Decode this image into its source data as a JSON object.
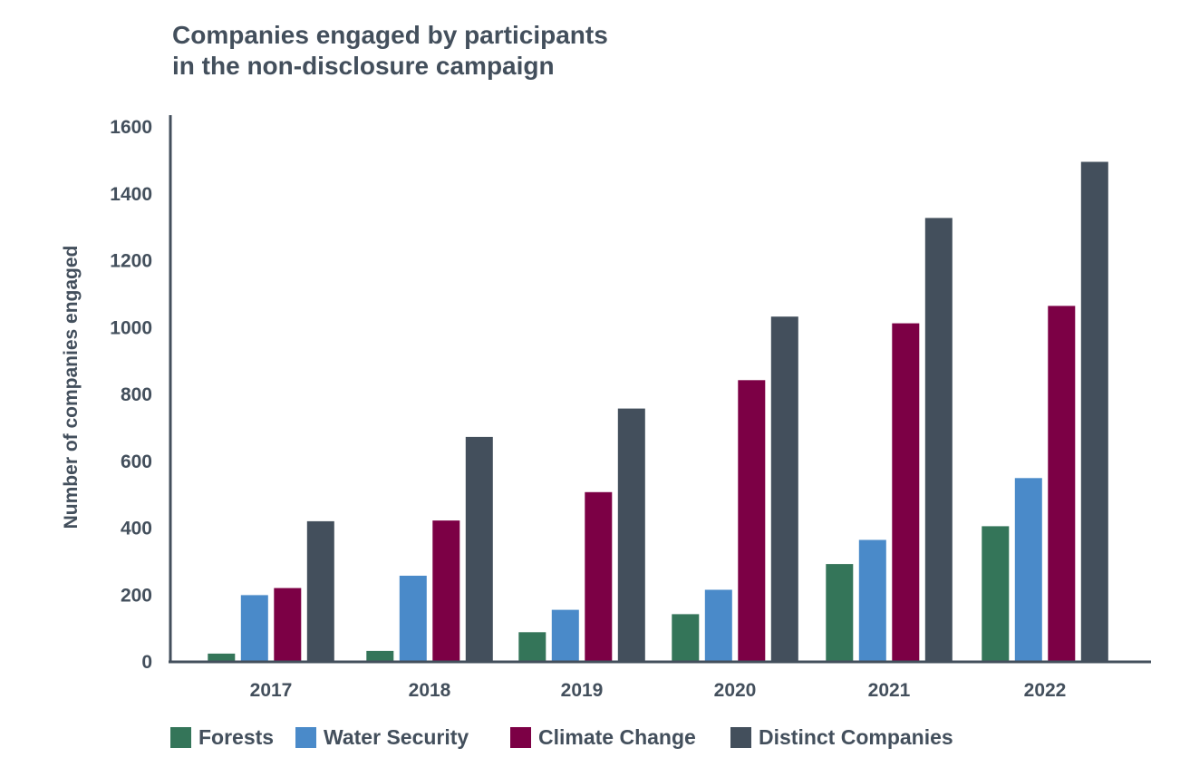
{
  "chart_data": {
    "type": "bar",
    "title_lines": [
      "Companies engaged by participants",
      "in the non-disclosure campaign"
    ],
    "xlabel": "",
    "ylabel": "Number of companies engaged",
    "ylim": [
      0,
      1600
    ],
    "yticks": [
      "0",
      "200",
      "400",
      "600",
      "800",
      "1000",
      "1200",
      "1400",
      "1600"
    ],
    "grid": false,
    "legend_position": "bottom",
    "categories": [
      "2017",
      "2018",
      "2019",
      "2020",
      "2021",
      "2022"
    ],
    "series": [
      {
        "name": "Forests",
        "color": "#347559",
        "values": [
          22,
          30,
          86,
          140,
          290,
          403
        ]
      },
      {
        "name": "Water Security",
        "color": "#4a8ac9",
        "values": [
          197,
          255,
          153,
          213,
          362,
          547
        ]
      },
      {
        "name": "Climate Change",
        "color": "#7c0045",
        "values": [
          218,
          420,
          505,
          840,
          1010,
          1062
        ]
      },
      {
        "name": "Distinct Companies",
        "color": "#434f5c",
        "values": [
          418,
          670,
          755,
          1030,
          1325,
          1493
        ]
      }
    ]
  }
}
